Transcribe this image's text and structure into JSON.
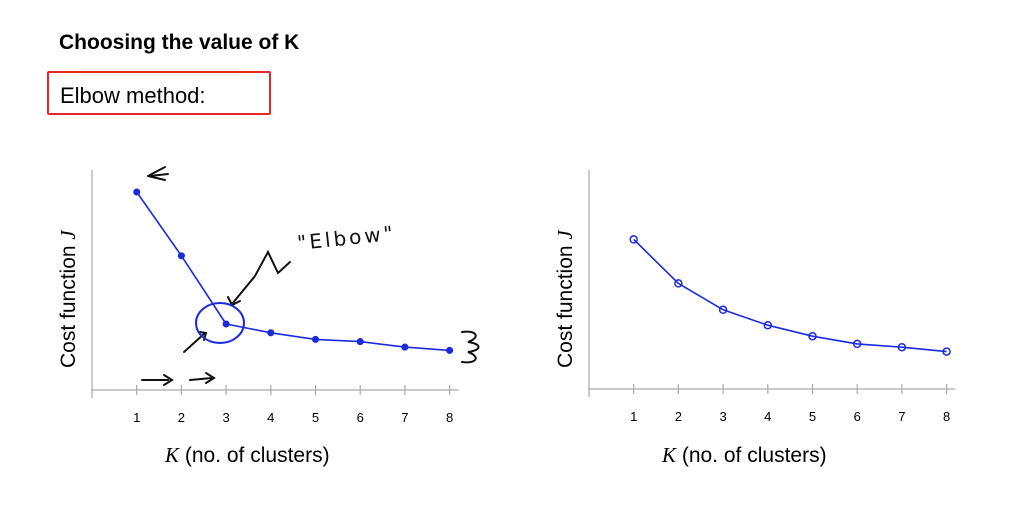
{
  "slide": {
    "title": "Choosing the value of K",
    "subtitle": "Elbow method:",
    "highlight_color": "#e8262a"
  },
  "chart_data": [
    {
      "type": "line",
      "title": "",
      "xlabel_var": "K",
      "xlabel": " (no. of clusters)",
      "ylabel": "Cost function ",
      "ylabel_var": "J",
      "x": [
        1,
        2,
        3,
        4,
        5,
        6,
        7,
        8
      ],
      "tick_labels": [
        "1",
        "2",
        "3",
        "4",
        "5",
        "6",
        "7",
        "8"
      ],
      "series": [
        {
          "name": "cost",
          "values": [
            9.0,
            6.1,
            3.0,
            2.6,
            2.3,
            2.2,
            1.95,
            1.8
          ],
          "color": "#1a2bdc"
        }
      ],
      "xlim": [
        0,
        8.2
      ],
      "ylim": [
        0,
        10
      ],
      "grid": false,
      "annotations": [
        "\"Elbow\""
      ]
    },
    {
      "type": "line",
      "title": "",
      "xlabel_var": "K",
      "xlabel": " (no. of clusters)",
      "ylabel": "Cost function ",
      "ylabel_var": "J",
      "x": [
        1,
        2,
        3,
        4,
        5,
        6,
        7,
        8
      ],
      "tick_labels": [
        "1",
        "2",
        "3",
        "4",
        "5",
        "6",
        "7",
        "8"
      ],
      "series": [
        {
          "name": "cost",
          "values": [
            6.8,
            4.8,
            3.6,
            2.9,
            2.4,
            2.05,
            1.9,
            1.7
          ],
          "color": "#1a2bdc"
        }
      ],
      "xlim": [
        0,
        8.2
      ],
      "ylim": [
        0,
        10
      ],
      "grid": false
    }
  ]
}
